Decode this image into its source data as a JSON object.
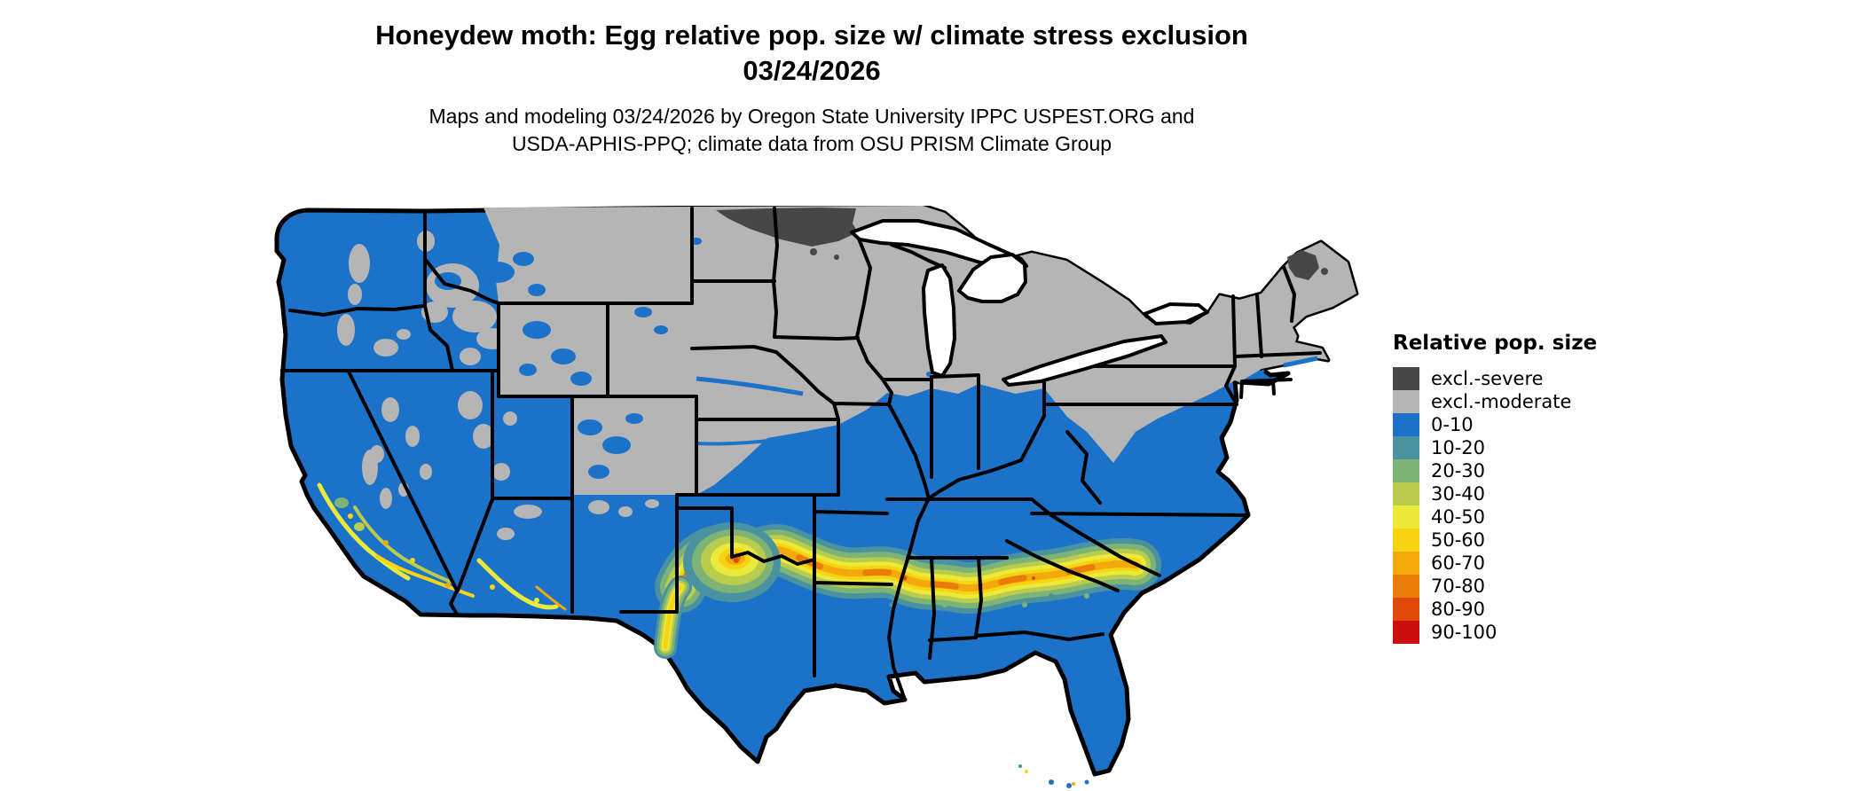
{
  "title": {
    "line1": "Honeydew moth: Egg relative pop. size w/ climate stress exclusion",
    "line2": "03/24/2026"
  },
  "subtitle": {
    "line1": "Maps and modeling 03/24/2026 by Oregon State University IPPC USPEST.ORG and",
    "line2": "USDA-APHIS-PPQ; climate data from OSU PRISM Climate Group"
  },
  "legend": {
    "title": "Relative pop. size",
    "items": [
      {
        "label": "excl.-severe",
        "colorKey": "excl_severe"
      },
      {
        "label": "excl.-moderate",
        "colorKey": "excl_moderate"
      },
      {
        "label": "0-10",
        "colorKey": "c0_10"
      },
      {
        "label": "10-20",
        "colorKey": "c10_20"
      },
      {
        "label": "20-30",
        "colorKey": "c20_30"
      },
      {
        "label": "30-40",
        "colorKey": "c30_40"
      },
      {
        "label": "40-50",
        "colorKey": "c40_50"
      },
      {
        "label": "50-60",
        "colorKey": "c50_60"
      },
      {
        "label": "60-70",
        "colorKey": "c60_70"
      },
      {
        "label": "70-80",
        "colorKey": "c70_80"
      },
      {
        "label": "80-90",
        "colorKey": "c80_90"
      },
      {
        "label": "90-100",
        "colorKey": "c90_100"
      }
    ]
  },
  "palette": {
    "excl_severe": "#474747",
    "excl_moderate": "#b5b5b5",
    "c0_10": "#1b72c8",
    "c10_20": "#4a92a0",
    "c20_30": "#7db374",
    "c30_40": "#bacc4d",
    "c40_50": "#ebe93a",
    "c50_60": "#f7d411",
    "c60_70": "#f3a80c",
    "c70_80": "#ea7d0a",
    "c80_90": "#df4a08",
    "c90_100": "#cb0e0e",
    "background": "#ffffff",
    "border": "#000000"
  },
  "map": {
    "region": "Contiguous United States",
    "legend_units": "Relative pop. size (percent classes)"
  }
}
